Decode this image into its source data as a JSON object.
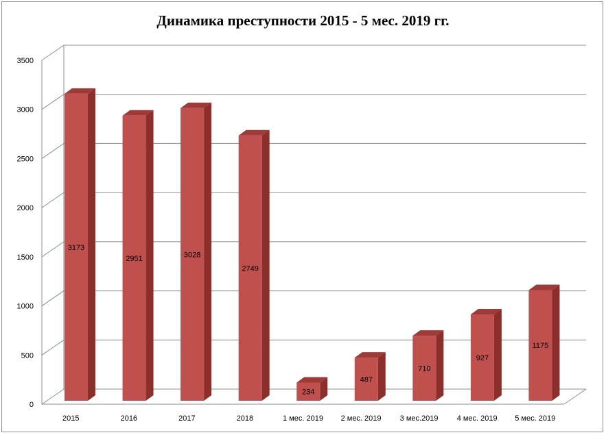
{
  "chart_data": {
    "type": "bar",
    "title": "Динамика преступности 2015 - 5 мес. 2019 гг.",
    "xlabel": "",
    "ylabel": "",
    "categories": [
      "2015",
      "2016",
      "2017",
      "2018",
      "1 мес. 2019",
      "2 мес. 2019",
      "3 мес.2019",
      "4 мес. 2019",
      "5 мес. 2019"
    ],
    "values": [
      3173,
      2951,
      3028,
      2749,
      234,
      487,
      710,
      927,
      1175
    ],
    "yticks": [
      "0",
      "500",
      "1000",
      "1500",
      "2000",
      "2500",
      "3000",
      "3500"
    ],
    "ylim": [
      0,
      3500
    ],
    "grid": true,
    "legend": "none",
    "style": "3d-column",
    "colors": {
      "bar_front": "#c0504d",
      "bar_side": "#8b2f2d",
      "bar_top": "#9e3a37",
      "grid": "#8c8c8c"
    }
  }
}
